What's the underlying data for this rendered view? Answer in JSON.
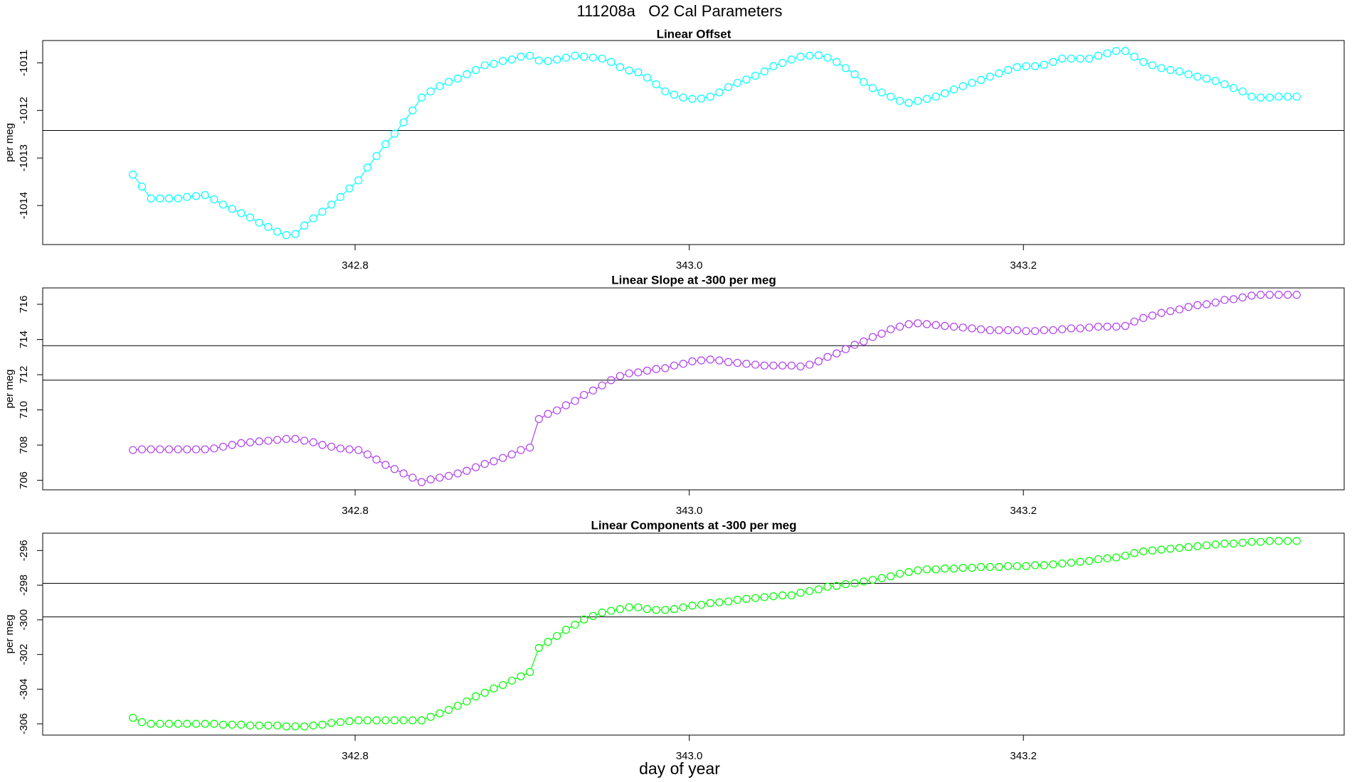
{
  "chart_data": {
    "type": "scatter",
    "title": "111208a   O2 Cal Parameters",
    "xlabel": "day of year",
    "xlim": [
      342.613,
      343.392
    ],
    "xticks": [
      342.8,
      {
        "value": 343,
        "label": "343.0"
      },
      343.2
    ],
    "x": [
      342.667,
      342.6724,
      342.6778,
      342.6832,
      342.6886,
      342.694,
      342.6994,
      342.7048,
      342.7102,
      342.7156,
      342.721,
      342.7264,
      342.7318,
      342.7372,
      342.7426,
      342.748,
      342.7534,
      342.7588,
      342.7642,
      342.7696,
      342.775,
      342.7804,
      342.7858,
      342.7912,
      342.7966,
      342.802,
      342.8074,
      342.8128,
      342.8182,
      342.8236,
      342.829,
      342.8344,
      342.8398,
      342.8452,
      342.8506,
      342.856,
      342.8614,
      342.8668,
      342.8722,
      342.8776,
      342.883,
      342.8884,
      342.8938,
      342.8992,
      342.9046,
      342.91,
      342.9154,
      342.9208,
      342.9262,
      342.9316,
      342.937,
      342.9424,
      342.9478,
      342.9532,
      342.9586,
      342.964,
      342.9694,
      342.9748,
      342.9802,
      342.9856,
      342.991,
      342.9964,
      343.0018,
      343.0072,
      343.0126,
      343.018,
      343.0234,
      343.0288,
      343.0342,
      343.0396,
      343.045,
      343.0504,
      343.0558,
      343.0612,
      343.0666,
      343.072,
      343.0774,
      343.0828,
      343.0882,
      343.0936,
      343.099,
      343.1044,
      343.1098,
      343.1152,
      343.1206,
      343.126,
      343.1314,
      343.1368,
      343.1422,
      343.1476,
      343.153,
      343.1584,
      343.1638,
      343.1692,
      343.1746,
      343.18,
      343.1854,
      343.1908,
      343.1962,
      343.2016,
      343.207,
      343.2124,
      343.2178,
      343.2232,
      343.2286,
      343.234,
      343.2394,
      343.2448,
      343.2502,
      343.2556,
      343.261,
      343.2664,
      343.2718,
      343.2772,
      343.2826,
      343.288,
      343.2934,
      343.2988,
      343.3042,
      343.3096,
      343.315,
      343.3204,
      343.3258,
      343.3312,
      343.3366,
      343.342,
      343.3474,
      343.3528,
      343.3582,
      343.3636
    ],
    "panels": [
      {
        "title": "Linear Offset",
        "ylabel": "per meg",
        "color": "#00ffff",
        "ylim": [
          -1014.82,
          -1010.53
        ],
        "yticks": [
          -1014,
          -1013,
          -1012,
          -1011
        ],
        "hlines": [
          -1012.42
        ],
        "values": [
          -1013.35,
          -1013.6,
          -1013.85,
          -1013.85,
          -1013.85,
          -1013.85,
          -1013.82,
          -1013.8,
          -1013.78,
          -1013.87,
          -1013.98,
          -1014.07,
          -1014.16,
          -1014.25,
          -1014.36,
          -1014.45,
          -1014.55,
          -1014.62,
          -1014.6,
          -1014.42,
          -1014.27,
          -1014.13,
          -1013.98,
          -1013.82,
          -1013.64,
          -1013.47,
          -1013.2,
          -1012.96,
          -1012.71,
          -1012.49,
          -1012.25,
          -1012.0,
          -1011.73,
          -1011.6,
          -1011.49,
          -1011.4,
          -1011.33,
          -1011.24,
          -1011.15,
          -1011.05,
          -1011.02,
          -1010.96,
          -1010.93,
          -1010.87,
          -1010.85,
          -1010.95,
          -1010.96,
          -1010.93,
          -1010.89,
          -1010.85,
          -1010.87,
          -1010.89,
          -1010.91,
          -1010.98,
          -1011.09,
          -1011.16,
          -1011.2,
          -1011.31,
          -1011.45,
          -1011.6,
          -1011.67,
          -1011.73,
          -1011.76,
          -1011.75,
          -1011.71,
          -1011.62,
          -1011.51,
          -1011.42,
          -1011.35,
          -1011.27,
          -1011.18,
          -1011.07,
          -1011.0,
          -1010.93,
          -1010.87,
          -1010.85,
          -1010.84,
          -1010.89,
          -1010.98,
          -1011.11,
          -1011.24,
          -1011.4,
          -1011.53,
          -1011.62,
          -1011.71,
          -1011.8,
          -1011.84,
          -1011.8,
          -1011.76,
          -1011.71,
          -1011.64,
          -1011.56,
          -1011.49,
          -1011.42,
          -1011.36,
          -1011.29,
          -1011.22,
          -1011.15,
          -1011.09,
          -1011.07,
          -1011.07,
          -1011.04,
          -1010.98,
          -1010.91,
          -1010.91,
          -1010.91,
          -1010.91,
          -1010.85,
          -1010.8,
          -1010.75,
          -1010.75,
          -1010.87,
          -1010.98,
          -1011.05,
          -1011.11,
          -1011.15,
          -1011.18,
          -1011.24,
          -1011.29,
          -1011.33,
          -1011.38,
          -1011.45,
          -1011.53,
          -1011.6,
          -1011.71,
          -1011.73,
          -1011.73,
          -1011.71,
          -1011.71,
          -1011.71
        ]
      },
      {
        "title": "Linear Slope at -300 per meg",
        "ylabel": "per meg",
        "color": "#b040f0",
        "ylim": [
          705.46,
          716.93
        ],
        "yticks": [
          706,
          708,
          710,
          712,
          714,
          716
        ],
        "hlines": [
          713.65,
          711.69
        ],
        "values": [
          707.72,
          707.76,
          707.76,
          707.76,
          707.76,
          707.76,
          707.76,
          707.76,
          707.76,
          707.81,
          707.91,
          708.01,
          708.11,
          708.16,
          708.21,
          708.25,
          708.3,
          708.35,
          708.35,
          708.25,
          708.16,
          708.01,
          707.91,
          707.81,
          707.76,
          707.72,
          707.47,
          707.18,
          706.88,
          706.64,
          706.39,
          706.15,
          705.9,
          706.05,
          706.15,
          706.25,
          706.39,
          706.54,
          706.74,
          706.93,
          707.08,
          707.27,
          707.47,
          707.72,
          707.86,
          709.48,
          709.77,
          709.97,
          710.26,
          710.51,
          710.85,
          711.1,
          711.39,
          711.69,
          711.93,
          712.08,
          712.13,
          712.23,
          712.32,
          712.37,
          712.52,
          712.62,
          712.76,
          712.81,
          712.86,
          712.81,
          712.72,
          712.67,
          712.62,
          712.57,
          712.52,
          712.52,
          712.52,
          712.52,
          712.47,
          712.57,
          712.76,
          713.01,
          713.21,
          713.45,
          713.7,
          713.89,
          714.14,
          714.33,
          714.58,
          714.73,
          714.87,
          714.92,
          714.87,
          714.82,
          714.77,
          714.73,
          714.68,
          714.63,
          714.58,
          714.53,
          714.53,
          714.53,
          714.53,
          714.48,
          714.48,
          714.53,
          714.53,
          714.58,
          714.63,
          714.63,
          714.68,
          714.73,
          714.73,
          714.73,
          714.77,
          715.02,
          715.22,
          715.36,
          715.51,
          715.61,
          715.71,
          715.85,
          715.95,
          716.0,
          716.1,
          716.25,
          716.29,
          716.39,
          716.49,
          716.54,
          716.54,
          716.54,
          716.54,
          716.54
        ]
      },
      {
        "title": "Linear Components at -300 per meg",
        "ylabel": "per meg",
        "color": "#00ff00",
        "ylim": [
          -306.65,
          -295.0
        ],
        "yticks": [
          -306,
          -304,
          -302,
          -300,
          -298,
          -296
        ],
        "hlines": [
          -297.89,
          -299.83
        ],
        "values": [
          -305.65,
          -305.9,
          -306.0,
          -306.0,
          -306.0,
          -306.0,
          -306.0,
          -306.0,
          -306.0,
          -306.0,
          -306.05,
          -306.05,
          -306.05,
          -306.1,
          -306.1,
          -306.1,
          -306.1,
          -306.15,
          -306.15,
          -306.15,
          -306.1,
          -306.05,
          -305.95,
          -305.9,
          -305.85,
          -305.8,
          -305.8,
          -305.8,
          -305.8,
          -305.8,
          -305.8,
          -305.8,
          -305.8,
          -305.6,
          -305.4,
          -305.2,
          -304.96,
          -304.71,
          -304.41,
          -304.21,
          -303.96,
          -303.76,
          -303.51,
          -303.26,
          -303.01,
          -301.62,
          -301.27,
          -300.93,
          -300.58,
          -300.28,
          -299.98,
          -299.78,
          -299.58,
          -299.48,
          -299.38,
          -299.28,
          -299.28,
          -299.38,
          -299.43,
          -299.43,
          -299.38,
          -299.28,
          -299.18,
          -299.13,
          -299.03,
          -298.99,
          -298.94,
          -298.84,
          -298.79,
          -298.74,
          -298.69,
          -298.64,
          -298.59,
          -298.59,
          -298.44,
          -298.34,
          -298.24,
          -298.09,
          -298.04,
          -297.94,
          -297.89,
          -297.79,
          -297.69,
          -297.59,
          -297.49,
          -297.34,
          -297.24,
          -297.14,
          -297.09,
          -297.09,
          -297.04,
          -297.04,
          -297.0,
          -297.0,
          -296.95,
          -296.95,
          -296.95,
          -296.9,
          -296.9,
          -296.9,
          -296.85,
          -296.85,
          -296.8,
          -296.75,
          -296.7,
          -296.65,
          -296.6,
          -296.5,
          -296.45,
          -296.4,
          -296.3,
          -296.15,
          -296.05,
          -296.0,
          -295.95,
          -295.9,
          -295.85,
          -295.8,
          -295.75,
          -295.7,
          -295.65,
          -295.6,
          -295.6,
          -295.55,
          -295.5,
          -295.5,
          -295.45,
          -295.45,
          -295.45,
          -295.45
        ]
      }
    ]
  }
}
